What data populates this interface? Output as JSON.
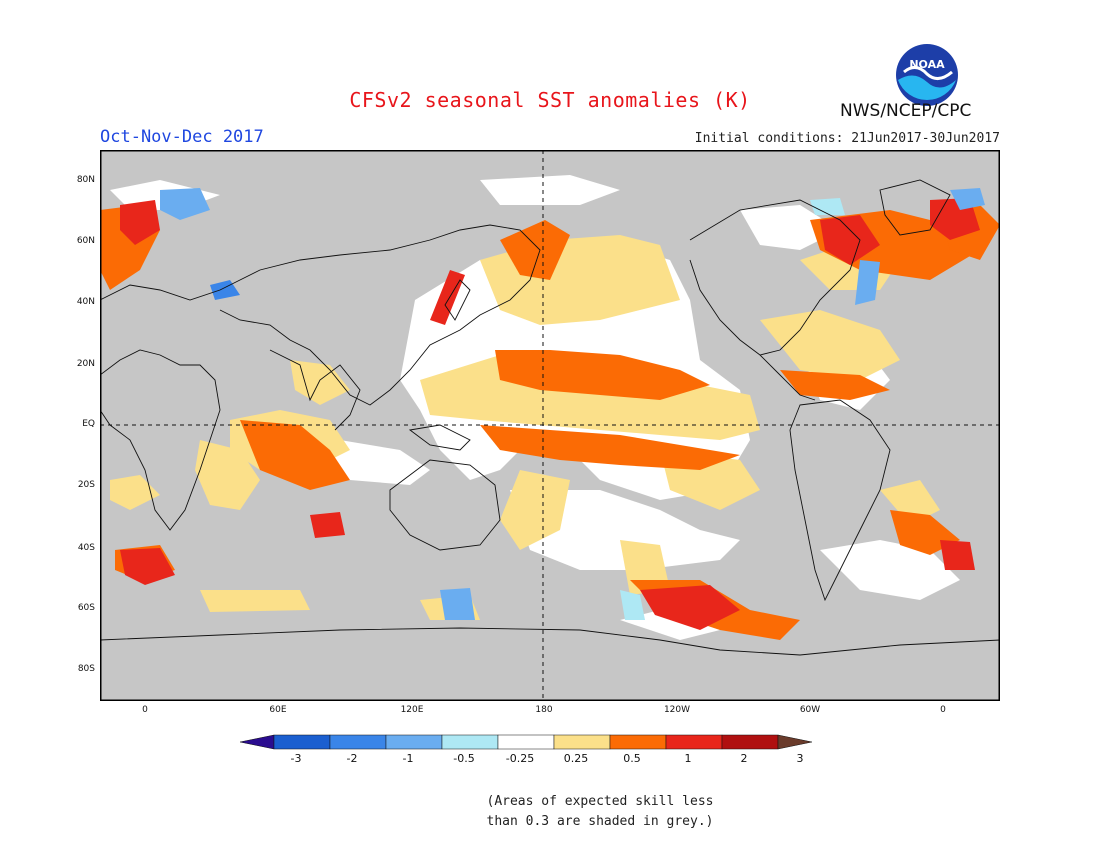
{
  "title": "CFSv2 seasonal SST anomalies (K)",
  "season": "Oct-Nov-Dec 2017",
  "initial_conditions": "Initial conditions: 21Jun2017-30Jun2017",
  "agency": "NWS/NCEP/CPC",
  "logo_text": "NOAA",
  "map": {
    "lat_labels": [
      "80N",
      "60N",
      "40N",
      "20N",
      "EQ",
      "20S",
      "40S",
      "60S",
      "80S"
    ],
    "lon_labels": [
      "0",
      "60E",
      "120E",
      "180",
      "120W",
      "60W",
      "0"
    ],
    "land_color": "#c8c8c8",
    "ocean_grey": "#c0c0c0"
  },
  "colorbar": {
    "labels": [
      "-3",
      "-2",
      "-1",
      "-0.5",
      "-0.25",
      "0.25",
      "0.5",
      "1",
      "2",
      "3"
    ],
    "colors": [
      "#2a0c8f",
      "#1b5fd0",
      "#3a85e8",
      "#6aadf0",
      "#aee8f4",
      "#ffffff",
      "#fbe08a",
      "#fb6b05",
      "#e8261b",
      "#b01010",
      "#6a3b2b"
    ]
  },
  "note": {
    "line1": "(Areas of expected skill less",
    "line2": "than 0.3 are shaded in grey.)"
  }
}
